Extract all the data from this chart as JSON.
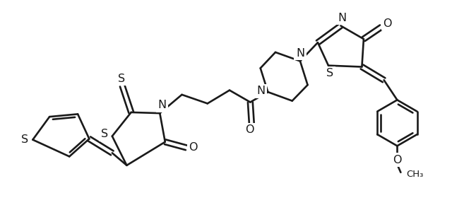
{
  "bg": "#ffffff",
  "lc": "#1a1a1a",
  "lw": 1.9,
  "fs": 11.0,
  "xlim": [
    0.0,
    10.2
  ],
  "ylim": [
    0.5,
    5.0
  ]
}
